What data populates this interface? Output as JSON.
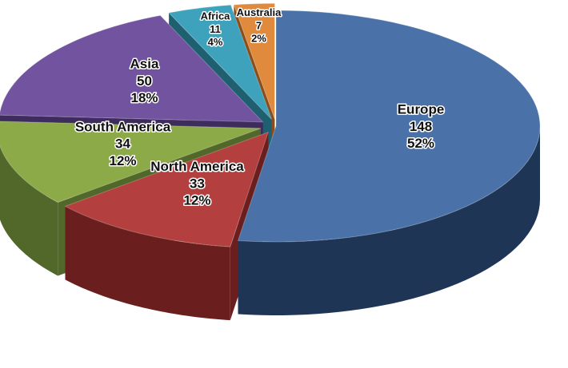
{
  "chart_data": {
    "type": "pie",
    "style": "3d-exploded",
    "start_angle_deg": 0,
    "direction": "clockwise",
    "slices": [
      {
        "label": "Europe",
        "value": 148,
        "percent": "52%",
        "value_text": "148",
        "color": "#4A72A8",
        "side_color": "#1F3556",
        "explode": 0
      },
      {
        "label": "North America",
        "value": 33,
        "percent": "12%",
        "value_text": "33",
        "color": "#B3403E",
        "side_color": "#6A1F1E",
        "explode": 1
      },
      {
        "label": "South America",
        "value": 34,
        "percent": "12%",
        "value_text": "34",
        "color": "#8CAA48",
        "side_color": "#52672A",
        "explode": 1
      },
      {
        "label": "Asia",
        "value": 50,
        "percent": "18%",
        "value_text": "50",
        "color": "#7153A0",
        "side_color": "#3F2C5E",
        "explode": 1
      },
      {
        "label": "Africa",
        "value": 11,
        "percent": "4%",
        "value_text": "11",
        "color": "#3FA2BC",
        "side_color": "#1E6070",
        "explode": 1
      },
      {
        "label": "Australia",
        "value": 7,
        "percent": "2%",
        "value_text": "7",
        "color": "#E08A3E",
        "side_color": "#8A4E1C",
        "explode": 1
      }
    ]
  }
}
